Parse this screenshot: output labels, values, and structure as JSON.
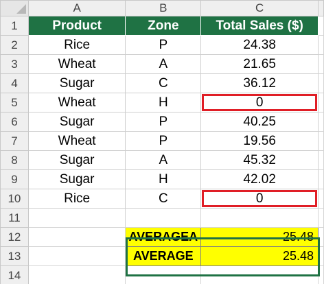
{
  "columns": [
    "A",
    "B",
    "C"
  ],
  "rows": [
    "1",
    "2",
    "3",
    "4",
    "5",
    "6",
    "7",
    "8",
    "9",
    "10",
    "11",
    "12",
    "13",
    "14"
  ],
  "table": {
    "headers": [
      "Product",
      "Zone",
      "Total Sales ($)"
    ],
    "data": [
      [
        "Rice",
        "P",
        "24.38"
      ],
      [
        "Wheat",
        "A",
        "21.65"
      ],
      [
        "Sugar",
        "C",
        "36.12"
      ],
      [
        "Wheat",
        "H",
        "0"
      ],
      [
        "Sugar",
        "P",
        "40.25"
      ],
      [
        "Wheat",
        "P",
        "19.56"
      ],
      [
        "Sugar",
        "A",
        "45.32"
      ],
      [
        "Sugar",
        "H",
        "42.02"
      ],
      [
        "Rice",
        "C",
        "0"
      ]
    ]
  },
  "summary": [
    {
      "label": "AVERAGEA",
      "value": "25.48"
    },
    {
      "label": "AVERAGE",
      "value": "25.48"
    }
  ],
  "colors": {
    "header_fill": "#1f7244",
    "highlight_fill": "#ffff00",
    "zero_outline": "#e01e26",
    "summary_outline": "#1f7244"
  },
  "icons": {
    "corner": "select-all-triangle-icon"
  }
}
